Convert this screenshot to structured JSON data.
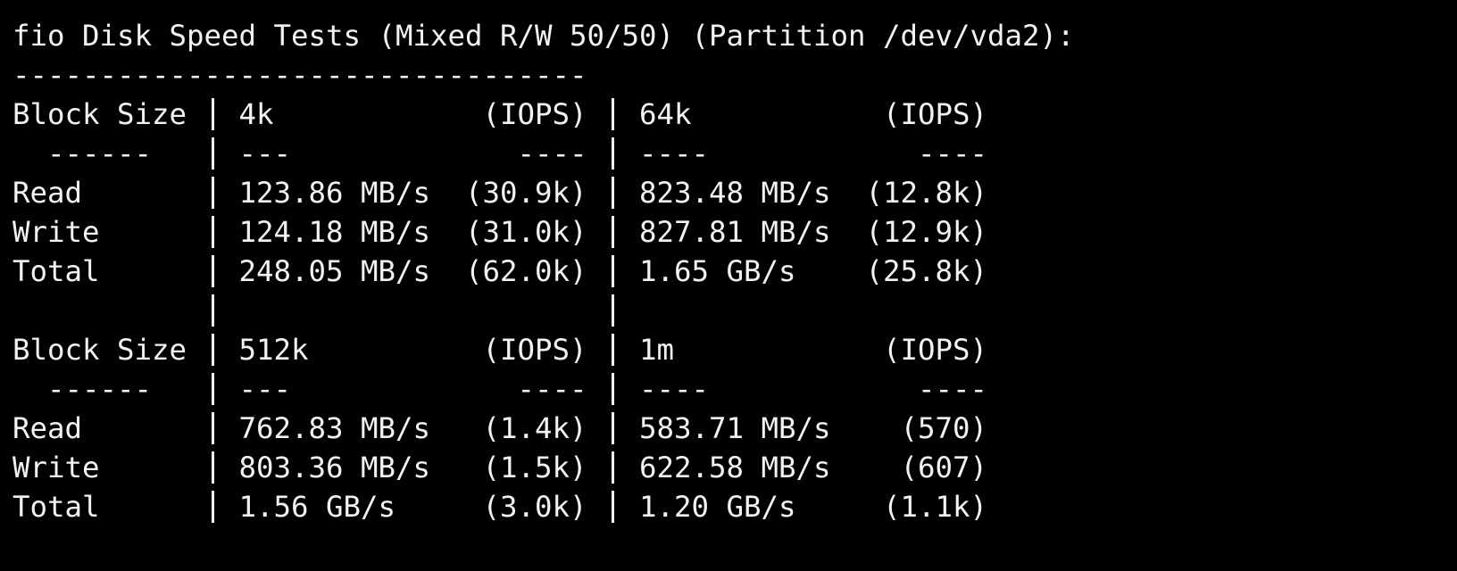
{
  "title": "fio Disk Speed Tests (Mixed R/W 50/50) (Partition /dev/vda2):",
  "rule": "---------------------------------",
  "tables": [
    {
      "rows": [
        [
          "Block Size",
          "4k",
          "(IOPS)",
          "64k",
          "(IOPS)"
        ],
        [
          "------",
          "---",
          "----",
          "----",
          "----"
        ],
        [
          "Read",
          "123.86 MB/s",
          "(30.9k)",
          "823.48 MB/s",
          "(12.8k)"
        ],
        [
          "Write",
          "124.18 MB/s",
          "(31.0k)",
          "827.81 MB/s",
          "(12.9k)"
        ],
        [
          "Total",
          "248.05 MB/s",
          "(62.0k)",
          "1.65 GB/s",
          "(25.8k)"
        ]
      ]
    },
    {
      "rows": [
        [
          "Block Size",
          "512k",
          "(IOPS)",
          "1m",
          "(IOPS)"
        ],
        [
          "------",
          "---",
          "----",
          "----",
          "----"
        ],
        [
          "Read",
          "762.83 MB/s",
          "(1.4k)",
          "583.71 MB/s",
          "(570)"
        ],
        [
          "Write",
          "803.36 MB/s",
          "(1.5k)",
          "622.58 MB/s",
          "(607)"
        ],
        [
          "Total",
          "1.56 GB/s",
          "(3.0k)",
          "1.20 GB/s",
          "(1.1k)"
        ]
      ]
    }
  ]
}
